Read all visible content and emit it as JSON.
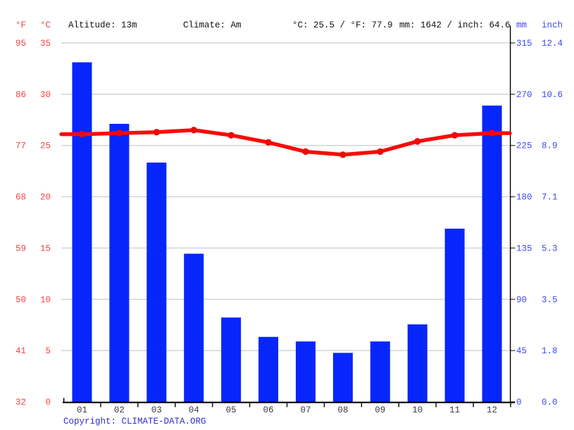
{
  "header": {
    "f_unit": "°F",
    "c_unit": "°C",
    "altitude": "Altitude: 13m",
    "climate": "Climate: Am",
    "temp_summary": "°C: 25.5 / °F: 77.9",
    "precip_summary": "mm: 1642 / inch: 64.6",
    "mm_unit": "mm",
    "inch_unit": "inch"
  },
  "footer": {
    "copyright_label": "Copyright: ",
    "copyright_link": "CLIMATE-DATA.ORG"
  },
  "colors": {
    "bar_blue": "#0726fb",
    "line_red": "#fa0a0a",
    "marker_red": "#f40606",
    "red_label": "#f24444",
    "blue_label": "#3d48f2",
    "month_label": "#3a3a3a",
    "gridline": "#cbcbcb",
    "axis": "#000000",
    "copyright_blue": "#2d2dd2"
  },
  "chart_data": {
    "type": "bar+line",
    "title": "",
    "categories": [
      "01",
      "02",
      "03",
      "04",
      "05",
      "06",
      "07",
      "08",
      "09",
      "10",
      "11",
      "12"
    ],
    "series": [
      {
        "name": "precipitation_mm",
        "type": "bar",
        "values": [
          298,
          244,
          210,
          130,
          74,
          57,
          53,
          43,
          53,
          68,
          152,
          260
        ]
      },
      {
        "name": "temperature_c",
        "type": "line",
        "values": [
          26.1,
          26.2,
          26.3,
          26.5,
          26.0,
          25.3,
          24.4,
          24.1,
          24.4,
          25.4,
          26.0,
          26.2
        ]
      }
    ],
    "axes": {
      "left_f_ticks": [
        "95",
        "86",
        "77",
        "68",
        "59",
        "50",
        "41",
        "32"
      ],
      "left_c_ticks": [
        "35",
        "30",
        "25",
        "20",
        "15",
        "10",
        "5",
        "0"
      ],
      "right_mm_ticks": [
        "315",
        "270",
        "225",
        "180",
        "135",
        "90",
        "45",
        "0"
      ],
      "right_inch_ticks": [
        "12.4",
        "10.6",
        "8.9",
        "7.1",
        "5.3",
        "3.5",
        "1.8",
        "0.0"
      ],
      "c_range": [
        0,
        35
      ],
      "mm_range": [
        0,
        315
      ],
      "grid": "horizontal",
      "legend": "none"
    }
  }
}
